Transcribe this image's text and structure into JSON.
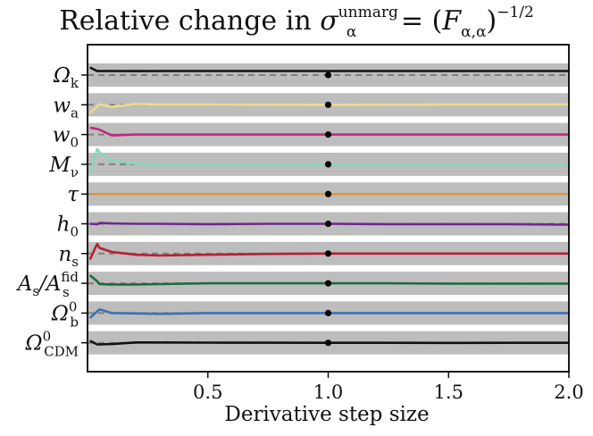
{
  "title": {
    "prefix": "Relative change in",
    "symbol": "σ",
    "sup": "unmarg",
    "sub": "α",
    "eq": "=",
    "paren_open": "(",
    "F": "F",
    "Fsub": "α,α",
    "paren_close": ")",
    "exponent": "−1/2"
  },
  "chart_data": {
    "type": "line",
    "title": "Relative change in σ_α^unmarg = (F_α,α)^-1/2",
    "xlabel": "Derivative step size",
    "ylabel": "",
    "xlim": [
      0.0,
      2.0
    ],
    "xticks": [
      0.5,
      1.0,
      1.5,
      2.0
    ],
    "xtick_labels": [
      "0.5",
      "1.0",
      "1.5",
      "2.0"
    ],
    "reference_x": 1.0,
    "reference_marker": "black dot on every row at x = 1.0",
    "dashed_reference": "gray dashed line at relative change = 1 in each row",
    "band_shading": "alternating gray bands per parameter row",
    "x": [
      0.01,
      0.04,
      0.05,
      0.1,
      0.2,
      0.3,
      0.5,
      0.75,
      1.0,
      1.25,
      1.5,
      1.75,
      2.0
    ],
    "series": [
      {
        "name": "Ω_k",
        "color": "#111111",
        "values": [
          1.9,
          1.0,
          1.0,
          1.0,
          0.98,
          0.99,
          1.0,
          1.0,
          1.0,
          1.0,
          1.0,
          1.0,
          1.0
        ]
      },
      {
        "name": "w_a",
        "color": "#f2d98c",
        "values": [
          -2.0,
          -0.4,
          0.1,
          -0.5,
          0.2,
          0.05,
          0.05,
          0.02,
          0.0,
          0.02,
          0.05,
          0.05,
          0.08
        ]
      },
      {
        "name": "w_0",
        "color": "#c0287e",
        "values": [
          1.7,
          1.4,
          1.2,
          -0.2,
          0.0,
          0.0,
          0.0,
          0.0,
          0.0,
          0.0,
          0.0,
          0.0,
          0.0
        ]
      },
      {
        "name": "M_ν",
        "color": "#88d5c0",
        "values": [
          -2.2,
          3.8,
          3.0,
          1.0,
          0.1,
          0.0,
          0.0,
          0.0,
          0.0,
          0.0,
          0.0,
          0.0,
          0.0
        ]
      },
      {
        "name": "τ",
        "color": "#e1963a",
        "values": [
          0.0,
          0.0,
          0.0,
          0.0,
          0.0,
          0.0,
          0.0,
          0.0,
          0.0,
          0.0,
          0.0,
          0.0,
          0.0
        ]
      },
      {
        "name": "h_0",
        "color": "#6e2a8c",
        "values": [
          0.0,
          -0.1,
          0.2,
          0.1,
          0.0,
          0.0,
          -0.1,
          0.0,
          0.0,
          -0.1,
          -0.1,
          -0.1,
          -0.2
        ]
      },
      {
        "name": "n_s",
        "color": "#b52034",
        "values": [
          -1.5,
          2.4,
          1.4,
          0.4,
          -0.3,
          -0.5,
          -0.3,
          -0.1,
          0.0,
          0.0,
          0.0,
          0.0,
          0.0
        ]
      },
      {
        "name": "A_s/A_s^fid",
        "color": "#1f6b3e",
        "values": [
          2.0,
          0.5,
          -0.2,
          -0.3,
          -0.3,
          -0.2,
          0.0,
          0.0,
          0.0,
          0.0,
          -0.1,
          -0.1,
          -0.1
        ]
      },
      {
        "name": "Ω_b^0",
        "color": "#3a72b6",
        "values": [
          -1.2,
          0.4,
          0.9,
          0.0,
          -0.1,
          -0.2,
          0.0,
          0.0,
          0.0,
          0.0,
          0.0,
          0.0,
          0.0
        ]
      },
      {
        "name": "Ω_CDM^0",
        "color": "#111111",
        "values": [
          0.5,
          -0.4,
          -0.4,
          -0.3,
          0.1,
          0.1,
          0.05,
          0.02,
          0.0,
          0.0,
          -0.02,
          0.0,
          0.0
        ]
      }
    ]
  },
  "ylabels": [
    {
      "base": "Ω",
      "sub": "k",
      "sup": ""
    },
    {
      "base": "w",
      "sub": "a",
      "sup": ""
    },
    {
      "base": "w",
      "sub": "0",
      "sup": ""
    },
    {
      "base": "M",
      "sub": "ν",
      "sup": ""
    },
    {
      "base": "τ",
      "sub": "",
      "sup": ""
    },
    {
      "base": "h",
      "sub": "0",
      "sup": ""
    },
    {
      "base": "n",
      "sub": "s",
      "sup": ""
    },
    {
      "base": "A",
      "sub": "s",
      "sup": "",
      "extra": "/A",
      "extra_sub": "s",
      "extra_sup": "fid"
    },
    {
      "base": "Ω",
      "sub": "b",
      "sup": "0"
    },
    {
      "base": "Ω",
      "sub": "CDM",
      "sup": "0"
    }
  ]
}
